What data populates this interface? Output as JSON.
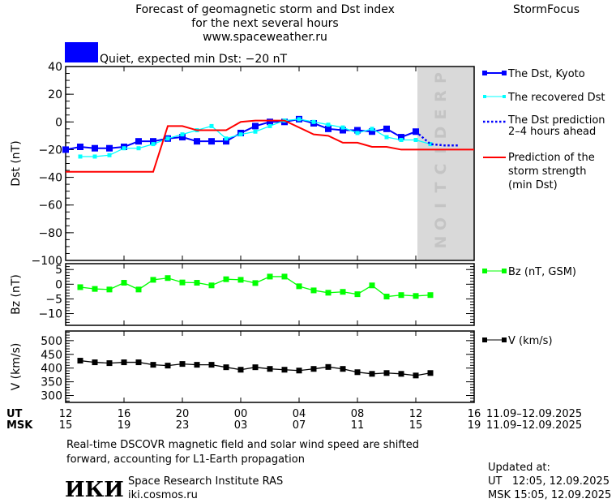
{
  "header": {
    "title_line1": "Forecast of geomagnetic storm and Dst index",
    "title_line2": "for the next several hours",
    "site": "www.spaceweather.ru",
    "brand": "StormFocus",
    "status_text": "Quiet, expected min Dst: −20 nT",
    "status_color": "#0000ff"
  },
  "legend": {
    "dst_kyoto": "The Dst, Kyoto",
    "recovered": "The recovered Dst",
    "prediction_1": "The Dst prediction",
    "prediction_2": "2–4 hours ahead",
    "storm_1": "Prediction of the",
    "storm_2": "storm strength",
    "storm_3": "(min Dst)",
    "bz": "Bz (nT, GSM)",
    "v": "V (km/s)"
  },
  "prediction_label": "PREDICTION",
  "axis": {
    "ut_label": "UT",
    "msk_label": "MSK",
    "ut_ticks": [
      "12",
      "16",
      "20",
      "00",
      "04",
      "08",
      "12",
      "16"
    ],
    "msk_ticks": [
      "15",
      "19",
      "23",
      "03",
      "07",
      "11",
      "15",
      "19"
    ],
    "ut_range": "11.09–12.09.2025",
    "msk_range": "11.09–12.09.2025"
  },
  "footer": {
    "note_1": "Real-time DSCOVR magnetic field and solar wind speed are shifted",
    "note_2": "forward, accounting for L1-Earth propagation",
    "institute": "Space Research Institute RAS",
    "url": "iki.cosmos.ru",
    "logo": "ИКИ",
    "updated_label": "Updated at:",
    "updated_ut": "UT   12:05, 12.09.2025",
    "updated_msk": "MSK 15:05, 12.09.2025"
  },
  "chart_data": [
    {
      "type": "line",
      "ylabel": "Dst (nT)",
      "ylim": [
        -100,
        40
      ],
      "yticks": [
        40,
        20,
        0,
        -20,
        -40,
        -60,
        -80,
        -100
      ],
      "x_start_ut": "2025-09-11 12:00",
      "x_end_ut": "2025-09-12 16:00",
      "prediction_region_ut": [
        "2025-09-12 12:00",
        "2025-09-12 16:00"
      ],
      "series": [
        {
          "name": "The Dst, Kyoto",
          "color": "#0000ff",
          "start_ut": "2025-09-11 12:00",
          "step_hours": 1,
          "values": [
            -20,
            -18,
            -19,
            -19,
            -18,
            -14,
            -14,
            -12,
            -11,
            -14,
            -14,
            -14,
            -8,
            -3,
            0,
            0,
            2,
            -1,
            -5,
            -6,
            -6,
            -7,
            -5,
            -11,
            -7
          ]
        },
        {
          "name": "The recovered Dst",
          "color": "#00ffff",
          "start_ut": "2025-09-11 13:00",
          "step_hours": 1,
          "values": [
            -25,
            -25,
            -24,
            -19,
            -19,
            -16,
            -12,
            -9,
            -6,
            -3,
            -12,
            -9,
            -7,
            -3,
            1,
            2,
            0,
            -2,
            -4,
            -8,
            -5,
            -11,
            -13,
            -13,
            -16
          ]
        },
        {
          "name": "The Dst prediction 2–4 hours ahead",
          "color": "#0000ff",
          "start_ut": "2025-09-12 12:00",
          "step_hours": 1,
          "values": [
            -7,
            -16,
            -17,
            -17
          ]
        },
        {
          "name": "Prediction of the storm strength (min Dst)",
          "color": "#ff0000",
          "points_ut": [
            [
              "2025-09-11 12:00",
              -36
            ],
            [
              "2025-09-11 18:00",
              -36
            ],
            [
              "2025-09-11 19:00",
              -3
            ],
            [
              "2025-09-11 20:00",
              -3
            ],
            [
              "2025-09-11 21:00",
              -6
            ],
            [
              "2025-09-11 23:00",
              -6
            ],
            [
              "2025-09-12 00:00",
              0
            ],
            [
              "2025-09-12 01:00",
              1
            ],
            [
              "2025-09-12 03:00",
              1
            ],
            [
              "2025-09-12 05:00",
              -9
            ],
            [
              "2025-09-12 06:00",
              -10
            ],
            [
              "2025-09-12 07:00",
              -15
            ],
            [
              "2025-09-12 08:00",
              -15
            ],
            [
              "2025-09-12 09:00",
              -18
            ],
            [
              "2025-09-12 10:00",
              -18
            ],
            [
              "2025-09-12 11:00",
              -20
            ],
            [
              "2025-09-12 16:00",
              -20
            ]
          ]
        }
      ]
    },
    {
      "type": "line",
      "ylabel": "Bz (nT)",
      "ylim": [
        -14,
        7
      ],
      "yticks": [
        5,
        0,
        -5,
        -10
      ],
      "series": [
        {
          "name": "Bz (nT, GSM)",
          "color": "#00ff00",
          "start_ut": "2025-09-11 13:00",
          "step_hours": 1,
          "values": [
            -1.0,
            -1.6,
            -1.8,
            0.5,
            -1.8,
            1.5,
            2.1,
            0.6,
            0.5,
            -0.4,
            1.7,
            1.5,
            0.4,
            2.6,
            2.6,
            -0.7,
            -2.1,
            -2.9,
            -2.6,
            -3.4,
            -0.4,
            -4.2,
            -3.7,
            -4.0,
            -3.7
          ]
        }
      ]
    },
    {
      "type": "line",
      "ylabel": "V (km/s)",
      "ylim": [
        275,
        535
      ],
      "yticks": [
        500,
        450,
        400,
        350,
        300
      ],
      "series": [
        {
          "name": "V (km/s)",
          "color": "#000000",
          "start_ut": "2025-09-11 13:00",
          "step_hours": 1,
          "values": [
            427,
            421,
            418,
            421,
            421,
            412,
            409,
            415,
            412,
            412,
            403,
            394,
            403,
            397,
            394,
            391,
            397,
            404,
            397,
            385,
            379,
            382,
            379,
            373,
            382
          ]
        }
      ]
    }
  ]
}
